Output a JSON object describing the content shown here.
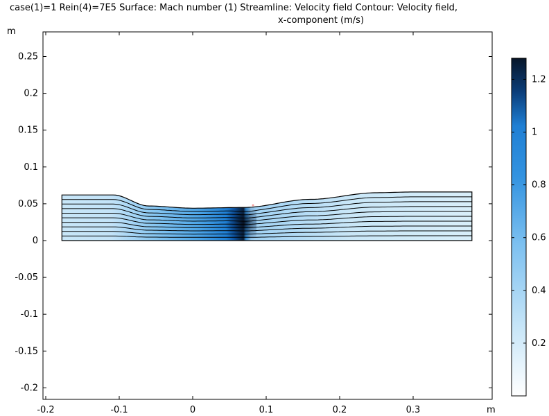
{
  "plot_title": {
    "line1": "case(1)=1 Rein(4)=7E5 Surface: Mach number (1)  Streamline: Velocity field  Contour: Velocity field,",
    "line2": "x-component (m/s)"
  },
  "chart_data": {
    "type": "heatmap",
    "title": "case(1)=1 Rein(4)=7E5 Surface: Mach number (1)  Streamline: Velocity field  Contour: Velocity field, x-component (m/s)",
    "xlabel": "m",
    "ylabel": "m",
    "xlim": [
      -0.205,
      0.405
    ],
    "ylim": [
      -0.215,
      0.285
    ],
    "x_ticks": [
      "-0.2",
      "-0.1",
      "0",
      "0.1",
      "0.2",
      "0.3"
    ],
    "y_ticks": [
      "0.25",
      "0.2",
      "0.15",
      "0.1",
      "0.05",
      "0",
      "-0.05",
      "-0.1",
      "-0.15",
      "-0.2"
    ],
    "colorbar": {
      "range": [
        0,
        1.28
      ],
      "ticks": [
        "1.2",
        "1",
        "0.8",
        "0.6",
        "0.4",
        "0.2"
      ],
      "colors": [
        "#ffffff",
        "#c8e6f8",
        "#5ab2ee",
        "#1f7fd4",
        "#0b3e7a",
        "#081629"
      ]
    },
    "nozzle_wall": {
      "x": [
        -0.178,
        -0.108,
        -0.06,
        0.0,
        0.07,
        0.16,
        0.25,
        0.3,
        0.38
      ],
      "y": [
        0.062,
        0.062,
        0.047,
        0.044,
        0.045,
        0.056,
        0.065,
        0.066,
        0.066
      ]
    },
    "shock_x": 0.072,
    "streamline_count": 9,
    "grid": false
  }
}
